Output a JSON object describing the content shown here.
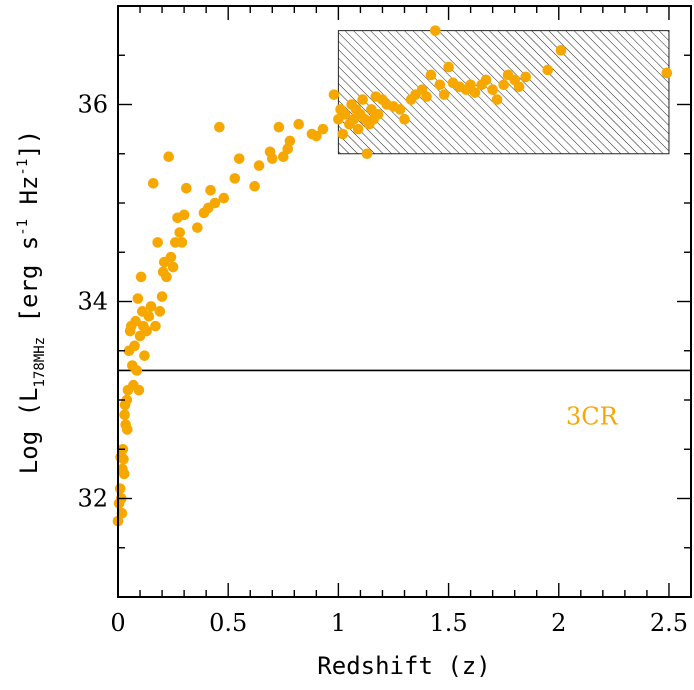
{
  "chart_data": {
    "type": "scatter",
    "xlabel": "Redshift (z)",
    "ylabel": {
      "prefix": "Log (L",
      "subscript": "178MHz",
      "units_open": " [erg s",
      "s_exp": "-1",
      "hz": " Hz",
      "hz_exp": "-1",
      "close": "])"
    },
    "xlim": [
      0,
      2.6
    ],
    "ylim": [
      31.0,
      37.0
    ],
    "xticks": [
      0,
      0.5,
      1,
      1.5,
      2,
      2.5
    ],
    "xtick_labels": [
      "0",
      "0.5",
      "1",
      "1.5",
      "2",
      "2.5"
    ],
    "yticks": [
      32,
      34,
      36
    ],
    "ytick_labels": [
      "32",
      "34",
      "36"
    ],
    "marker_color": "#f7a800",
    "annotation": {
      "text": "3CR",
      "x": 2.15,
      "y": 32.75,
      "color": "#f7a800"
    },
    "threshold_line": {
      "y": 33.3
    },
    "hatched_region": {
      "x0": 1.0,
      "x1": 2.5,
      "y0": 35.5,
      "y1": 36.75
    },
    "points": [
      [
        0.0,
        31.77
      ],
      [
        0.005,
        31.95
      ],
      [
        0.01,
        32.1
      ],
      [
        0.012,
        32.42
      ],
      [
        0.015,
        32.0
      ],
      [
        0.018,
        31.85
      ],
      [
        0.02,
        32.3
      ],
      [
        0.022,
        32.5
      ],
      [
        0.025,
        32.4
      ],
      [
        0.028,
        32.25
      ],
      [
        0.03,
        32.85
      ],
      [
        0.032,
        32.95
      ],
      [
        0.035,
        32.75
      ],
      [
        0.04,
        33.0
      ],
      [
        0.042,
        32.7
      ],
      [
        0.045,
        33.1
      ],
      [
        0.05,
        33.5
      ],
      [
        0.055,
        33.7
      ],
      [
        0.06,
        33.75
      ],
      [
        0.065,
        33.35
      ],
      [
        0.07,
        33.15
      ],
      [
        0.075,
        33.55
      ],
      [
        0.08,
        33.8
      ],
      [
        0.085,
        33.3
      ],
      [
        0.09,
        34.03
      ],
      [
        0.095,
        33.1
      ],
      [
        0.1,
        33.65
      ],
      [
        0.105,
        34.25
      ],
      [
        0.11,
        33.9
      ],
      [
        0.115,
        33.75
      ],
      [
        0.12,
        33.45
      ],
      [
        0.13,
        33.7
      ],
      [
        0.14,
        33.85
      ],
      [
        0.15,
        33.95
      ],
      [
        0.16,
        35.2
      ],
      [
        0.17,
        33.75
      ],
      [
        0.18,
        34.6
      ],
      [
        0.19,
        33.9
      ],
      [
        0.2,
        34.05
      ],
      [
        0.205,
        34.3
      ],
      [
        0.21,
        34.4
      ],
      [
        0.22,
        34.25
      ],
      [
        0.23,
        35.47
      ],
      [
        0.24,
        34.45
      ],
      [
        0.25,
        34.35
      ],
      [
        0.26,
        34.6
      ],
      [
        0.27,
        34.85
      ],
      [
        0.28,
        34.7
      ],
      [
        0.29,
        34.6
      ],
      [
        0.3,
        34.88
      ],
      [
        0.31,
        35.15
      ],
      [
        0.36,
        34.75
      ],
      [
        0.39,
        34.9
      ],
      [
        0.41,
        34.95
      ],
      [
        0.42,
        35.13
      ],
      [
        0.44,
        35.0
      ],
      [
        0.46,
        35.77
      ],
      [
        0.48,
        35.05
      ],
      [
        0.53,
        35.25
      ],
      [
        0.55,
        35.45
      ],
      [
        0.62,
        35.17
      ],
      [
        0.64,
        35.38
      ],
      [
        0.69,
        35.52
      ],
      [
        0.7,
        35.45
      ],
      [
        0.73,
        35.77
      ],
      [
        0.75,
        35.47
      ],
      [
        0.77,
        35.55
      ],
      [
        0.78,
        35.63
      ],
      [
        0.82,
        35.8
      ],
      [
        0.88,
        35.7
      ],
      [
        0.9,
        35.68
      ],
      [
        0.93,
        35.75
      ],
      [
        0.98,
        36.1
      ],
      [
        1.0,
        35.85
      ],
      [
        1.01,
        35.95
      ],
      [
        1.02,
        35.7
      ],
      [
        1.03,
        35.9
      ],
      [
        1.05,
        35.8
      ],
      [
        1.06,
        36.0
      ],
      [
        1.07,
        35.85
      ],
      [
        1.08,
        35.95
      ],
      [
        1.09,
        35.75
      ],
      [
        1.1,
        35.9
      ],
      [
        1.11,
        36.05
      ],
      [
        1.12,
        35.85
      ],
      [
        1.13,
        35.5
      ],
      [
        1.14,
        35.8
      ],
      [
        1.15,
        35.95
      ],
      [
        1.16,
        35.85
      ],
      [
        1.17,
        36.08
      ],
      [
        1.18,
        35.9
      ],
      [
        1.2,
        36.05
      ],
      [
        1.22,
        36.0
      ],
      [
        1.25,
        35.98
      ],
      [
        1.28,
        35.95
      ],
      [
        1.3,
        35.85
      ],
      [
        1.33,
        36.05
      ],
      [
        1.35,
        36.1
      ],
      [
        1.38,
        36.15
      ],
      [
        1.4,
        36.08
      ],
      [
        1.42,
        36.3
      ],
      [
        1.44,
        36.75
      ],
      [
        1.46,
        36.2
      ],
      [
        1.48,
        36.1
      ],
      [
        1.5,
        36.38
      ],
      [
        1.52,
        36.22
      ],
      [
        1.55,
        36.18
      ],
      [
        1.58,
        36.15
      ],
      [
        1.6,
        36.2
      ],
      [
        1.62,
        36.12
      ],
      [
        1.65,
        36.2
      ],
      [
        1.67,
        36.25
      ],
      [
        1.7,
        36.15
      ],
      [
        1.72,
        36.05
      ],
      [
        1.75,
        36.2
      ],
      [
        1.77,
        36.3
      ],
      [
        1.8,
        36.25
      ],
      [
        1.82,
        36.18
      ],
      [
        1.85,
        36.28
      ],
      [
        1.95,
        36.35
      ],
      [
        2.01,
        36.55
      ],
      [
        2.49,
        36.32
      ]
    ]
  }
}
